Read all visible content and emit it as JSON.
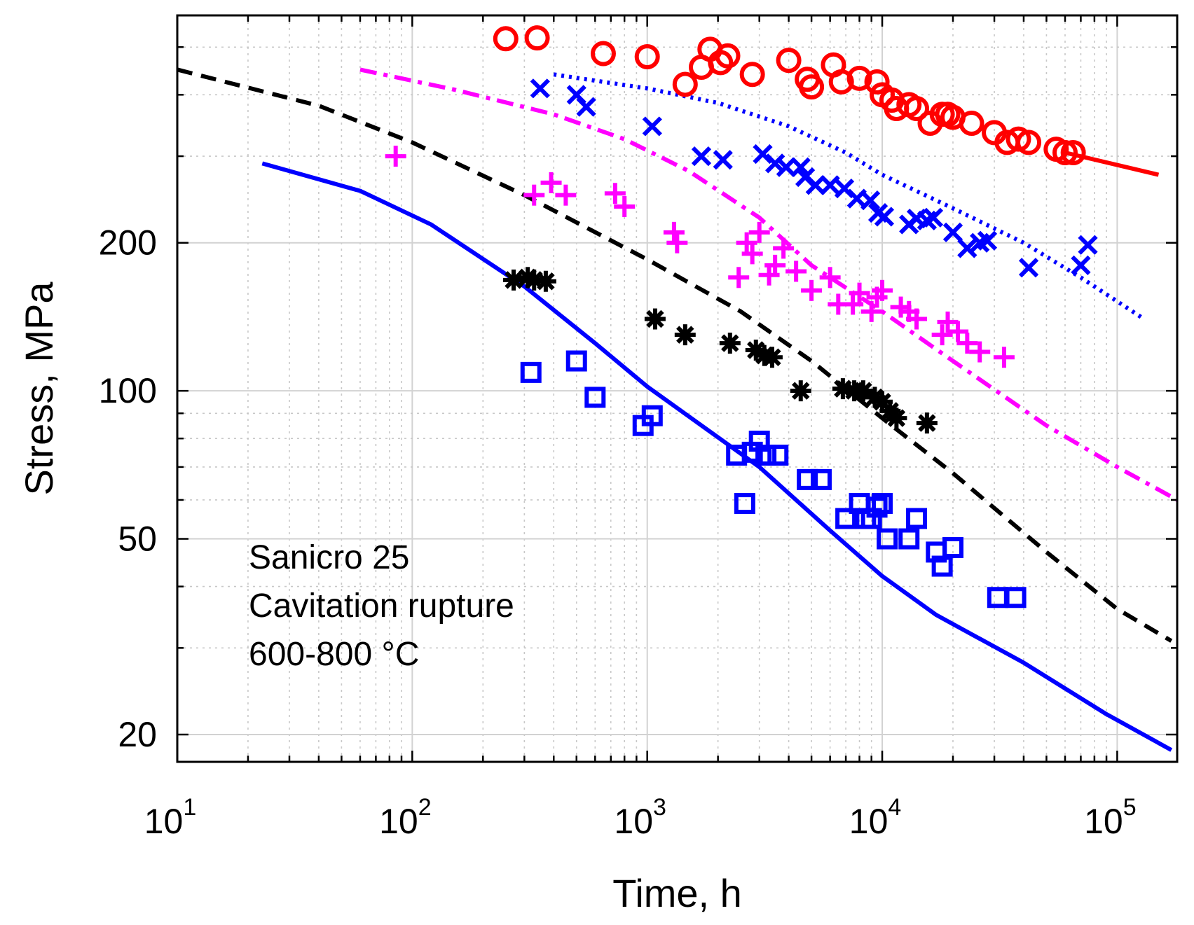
{
  "chart_data": {
    "type": "scatter",
    "title": "",
    "xlabel": "Time, h",
    "ylabel": "Stress, MPa",
    "x_scale": "log",
    "y_scale": "log",
    "xlim": [
      10,
      180000
    ],
    "ylim": [
      17.6,
      580
    ],
    "grid": true,
    "x_ticks": [
      {
        "value": 10,
        "base": "10",
        "exp": "1"
      },
      {
        "value": 100,
        "base": "10",
        "exp": "2"
      },
      {
        "value": 1000,
        "base": "10",
        "exp": "3"
      },
      {
        "value": 10000,
        "base": "10",
        "exp": "4"
      },
      {
        "value": 100000,
        "base": "10",
        "exp": "5"
      }
    ],
    "y_ticks": [
      {
        "value": 20,
        "label": "20"
      },
      {
        "value": 50,
        "label": "50"
      },
      {
        "value": 100,
        "label": "100"
      },
      {
        "value": 200,
        "label": "200"
      }
    ],
    "annotation": [
      "Sanicro 25",
      "Cavitation rupture",
      "600-800 °C"
    ],
    "series": [
      {
        "marker": "circle",
        "color": "#ff0000",
        "points": [
          [
            250,
            520
          ],
          [
            340,
            522
          ],
          [
            650,
            485
          ],
          [
            1000,
            478
          ],
          [
            1450,
            420
          ],
          [
            1700,
            455
          ],
          [
            1850,
            495
          ],
          [
            2050,
            465
          ],
          [
            2200,
            480
          ],
          [
            2800,
            440
          ],
          [
            4000,
            470
          ],
          [
            4800,
            430
          ],
          [
            5000,
            415
          ],
          [
            6200,
            460
          ],
          [
            6700,
            425
          ],
          [
            8000,
            432
          ],
          [
            9500,
            425
          ],
          [
            10000,
            400
          ],
          [
            11000,
            390
          ],
          [
            11500,
            375
          ],
          [
            13000,
            382
          ],
          [
            14000,
            375
          ],
          [
            16000,
            350
          ],
          [
            18000,
            365
          ],
          [
            19000,
            365
          ],
          [
            20000,
            360
          ],
          [
            24000,
            350
          ],
          [
            30000,
            335
          ],
          [
            34000,
            320
          ],
          [
            38000,
            325
          ],
          [
            42000,
            320
          ],
          [
            55000,
            310
          ],
          [
            60000,
            305
          ],
          [
            65000,
            305
          ]
        ]
      },
      {
        "marker": "x",
        "color": "#0000ff",
        "points": [
          [
            350,
            412
          ],
          [
            500,
            400
          ],
          [
            550,
            378
          ],
          [
            1050,
            345
          ],
          [
            1700,
            300
          ],
          [
            2100,
            295
          ],
          [
            3100,
            303
          ],
          [
            3500,
            290
          ],
          [
            3900,
            285
          ],
          [
            4500,
            285
          ],
          [
            4700,
            272
          ],
          [
            5200,
            262
          ],
          [
            6000,
            262
          ],
          [
            6900,
            258
          ],
          [
            7800,
            246
          ],
          [
            8900,
            244
          ],
          [
            9600,
            230
          ],
          [
            10200,
            226
          ],
          [
            13000,
            218
          ],
          [
            14000,
            224
          ],
          [
            15500,
            222
          ],
          [
            16500,
            225
          ],
          [
            20000,
            210
          ],
          [
            23000,
            195
          ],
          [
            26000,
            200
          ],
          [
            28000,
            202
          ],
          [
            42000,
            178
          ],
          [
            70000,
            180
          ],
          [
            75000,
            198
          ]
        ]
      },
      {
        "marker": "plus",
        "color": "#ff00ff",
        "points": [
          [
            85,
            300
          ],
          [
            330,
            250
          ],
          [
            390,
            265
          ],
          [
            450,
            250
          ],
          [
            730,
            252
          ],
          [
            800,
            237
          ],
          [
            1300,
            210
          ],
          [
            1340,
            200
          ],
          [
            2450,
            170
          ],
          [
            2650,
            200
          ],
          [
            2800,
            190
          ],
          [
            3000,
            210
          ],
          [
            3300,
            172
          ],
          [
            3500,
            180
          ],
          [
            3800,
            195
          ],
          [
            4300,
            175
          ],
          [
            5000,
            160
          ],
          [
            6000,
            170
          ],
          [
            6500,
            150
          ],
          [
            7500,
            150
          ],
          [
            8000,
            158
          ],
          [
            9000,
            145
          ],
          [
            9500,
            155
          ],
          [
            10000,
            160
          ],
          [
            12000,
            148
          ],
          [
            13000,
            145
          ],
          [
            14000,
            140
          ],
          [
            18000,
            130
          ],
          [
            19000,
            138
          ],
          [
            21000,
            132
          ],
          [
            23000,
            125
          ],
          [
            26000,
            120
          ],
          [
            33000,
            117
          ]
        ]
      },
      {
        "marker": "asterisk",
        "color": "#000000",
        "points": [
          [
            270,
            168
          ],
          [
            310,
            170
          ],
          [
            330,
            168
          ],
          [
            370,
            167
          ],
          [
            1080,
            140
          ],
          [
            1450,
            130
          ],
          [
            2250,
            125
          ],
          [
            2900,
            121
          ],
          [
            3150,
            118
          ],
          [
            3400,
            117
          ],
          [
            4500,
            100
          ],
          [
            6800,
            101
          ],
          [
            7600,
            100
          ],
          [
            8300,
            100
          ],
          [
            9300,
            97
          ],
          [
            10000,
            95
          ],
          [
            10800,
            91
          ],
          [
            11500,
            88
          ],
          [
            15500,
            86
          ]
        ]
      },
      {
        "marker": "square",
        "color": "#0000ff",
        "points": [
          [
            320,
            109
          ],
          [
            500,
            115
          ],
          [
            600,
            97
          ],
          [
            960,
            85
          ],
          [
            1050,
            89
          ],
          [
            2400,
            74
          ],
          [
            2600,
            59
          ],
          [
            2800,
            75
          ],
          [
            3000,
            79
          ],
          [
            3200,
            74
          ],
          [
            3600,
            74
          ],
          [
            4800,
            66
          ],
          [
            5500,
            66
          ],
          [
            7000,
            55
          ],
          [
            8000,
            59
          ],
          [
            8500,
            55
          ],
          [
            9000,
            55
          ],
          [
            9500,
            58
          ],
          [
            10000,
            59
          ],
          [
            10500,
            50
          ],
          [
            13000,
            50
          ],
          [
            14000,
            55
          ],
          [
            17000,
            47
          ],
          [
            18000,
            44
          ],
          [
            20000,
            48
          ],
          [
            31000,
            38
          ],
          [
            37000,
            38
          ]
        ]
      }
    ],
    "lines": [
      {
        "style": "solid",
        "color": "#ff0000",
        "points": [
          [
            60000,
            305
          ],
          [
            150000,
            275
          ]
        ]
      },
      {
        "style": "dotted",
        "color": "#0000ff",
        "points": [
          [
            400,
            440
          ],
          [
            1000,
            412
          ],
          [
            2000,
            385
          ],
          [
            4000,
            345
          ],
          [
            7000,
            305
          ],
          [
            10000,
            275
          ],
          [
            20000,
            235
          ],
          [
            40000,
            200
          ],
          [
            70000,
            170
          ],
          [
            130000,
            140
          ]
        ]
      },
      {
        "style": "dashdot",
        "color": "#ff00ff",
        "points": [
          [
            60,
            450
          ],
          [
            150,
            410
          ],
          [
            400,
            365
          ],
          [
            800,
            325
          ],
          [
            1500,
            280
          ],
          [
            3000,
            225
          ],
          [
            5000,
            180
          ],
          [
            10000,
            145
          ],
          [
            20000,
            115
          ],
          [
            50000,
            85
          ],
          [
            100000,
            70
          ],
          [
            180000,
            60
          ]
        ]
      },
      {
        "style": "dashed",
        "color": "#000000",
        "points": [
          [
            10,
            450
          ],
          [
            40,
            380
          ],
          [
            100,
            320
          ],
          [
            300,
            250
          ],
          [
            1000,
            185
          ],
          [
            2500,
            145
          ],
          [
            5000,
            115
          ],
          [
            10000,
            88
          ],
          [
            20000,
            68
          ],
          [
            50000,
            47
          ],
          [
            100000,
            36
          ],
          [
            170000,
            31
          ]
        ]
      },
      {
        "style": "solid",
        "color": "#0000ff",
        "points": [
          [
            23,
            290
          ],
          [
            60,
            255
          ],
          [
            120,
            218
          ],
          [
            300,
            163
          ],
          [
            600,
            125
          ],
          [
            1000,
            102
          ],
          [
            3000,
            70
          ],
          [
            6000,
            52
          ],
          [
            10000,
            42
          ],
          [
            17000,
            35
          ],
          [
            40000,
            28
          ],
          [
            90000,
            22
          ],
          [
            170000,
            18.6
          ]
        ]
      }
    ]
  }
}
